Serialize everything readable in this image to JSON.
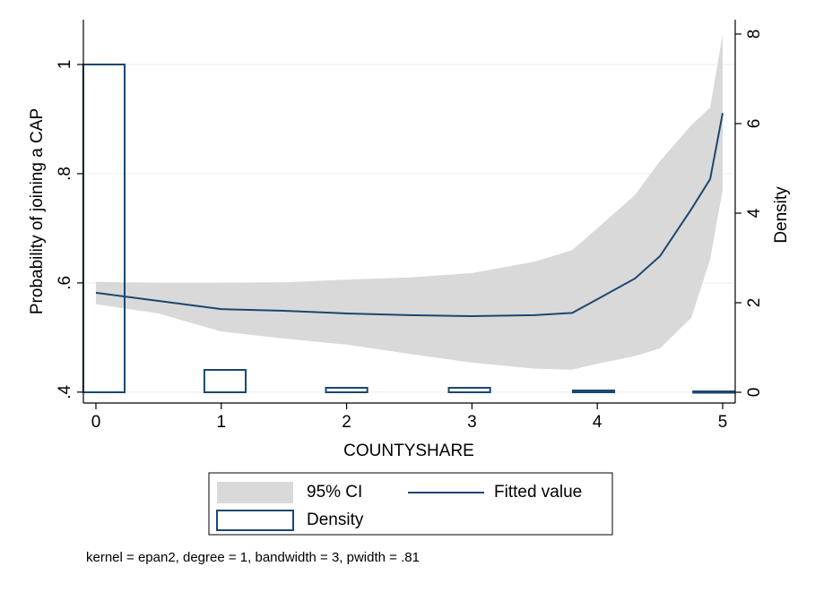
{
  "chart_data": {
    "type": "lpoly",
    "xlabel": "COUNTYSHARE",
    "ylabel": "Probability of joining a CAP",
    "y2label": "Density",
    "note": "kernel = epan2, degree = 1, bandwidth = 3, pwidth = .81",
    "xlim": [
      -0.1,
      5.1
    ],
    "xticks": [
      0,
      1,
      2,
      3,
      4,
      5
    ],
    "ylim": [
      0.38,
      1.082
    ],
    "yticks": [
      {
        "value": 0.4,
        "label": ".4"
      },
      {
        "value": 0.6,
        "label": ".6"
      },
      {
        "value": 0.8,
        "label": ".8"
      },
      {
        "value": 1,
        "label": "1"
      }
    ],
    "y2lim": [
      -0.24,
      8.32
    ],
    "y2ticks": [
      0,
      2,
      4,
      6,
      8
    ],
    "grid": true,
    "x": [
      0,
      0.5,
      1,
      1.5,
      2,
      2.5,
      3,
      3.5,
      3.8,
      4,
      4.3,
      4.5,
      4.75,
      4.9,
      5
    ],
    "series": [
      {
        "name": "95% CI",
        "kind": "area",
        "color": "#d9d9d9",
        "low": [
          0.561,
          0.544,
          0.511,
          0.498,
          0.487,
          0.47,
          0.454,
          0.443,
          0.441,
          0.452,
          0.466,
          0.48,
          0.536,
          0.643,
          0.77
        ],
        "high": [
          0.602,
          0.6,
          0.6,
          0.601,
          0.606,
          0.61,
          0.618,
          0.639,
          0.66,
          0.7,
          0.761,
          0.823,
          0.889,
          0.921,
          1.056
        ]
      },
      {
        "name": "Fitted value",
        "kind": "line",
        "color": "#1a476f",
        "values": [
          0.582,
          0.567,
          0.552,
          0.549,
          0.544,
          0.541,
          0.539,
          0.541,
          0.545,
          0.57,
          0.608,
          0.649,
          0.735,
          0.79,
          0.911
        ]
      },
      {
        "name": "Density",
        "kind": "bar",
        "axis": "y2",
        "color": "#1a476f",
        "x": [
          0.064,
          1.03,
          2.0,
          2.98,
          3.97,
          4.93
        ],
        "values": [
          7.32,
          0.5,
          0.1,
          0.1,
          0.04,
          0.02
        ]
      }
    ]
  }
}
